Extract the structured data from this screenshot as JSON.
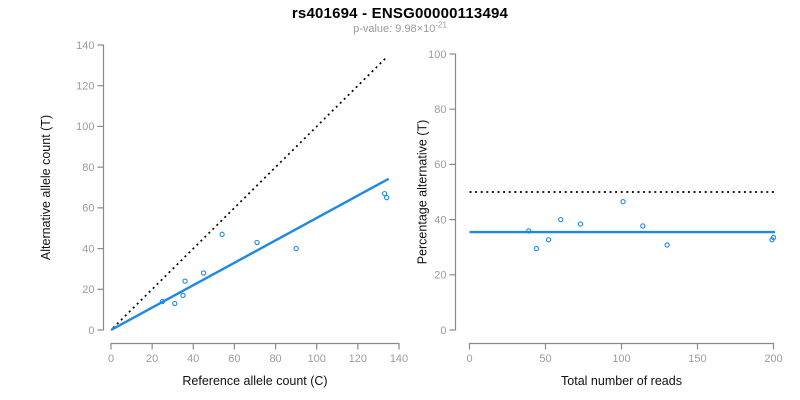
{
  "header": {
    "title": "rs401694 - ENSG00000113494",
    "subtitle_prefix": "p-value: 9.98×10",
    "subtitle_exponent": "-21"
  },
  "colors": {
    "accent_blue": "#1E88E5",
    "axis_gray": "#8a8a8a",
    "tick_label_gray": "#9c9c9c",
    "dotted_black": "#000000",
    "subtitle_gray": "#9a9a9a"
  },
  "chart_data": [
    {
      "type": "scatter",
      "name": "allele-counts-scatter",
      "xlabel": "Reference allele count (C)",
      "ylabel": "Alternative allele count (T)",
      "xlim": [
        0,
        140
      ],
      "ylim": [
        0,
        140
      ],
      "xticks": [
        0,
        20,
        40,
        60,
        80,
        100,
        120,
        140
      ],
      "yticks": [
        0,
        20,
        40,
        60,
        80,
        100,
        120,
        140
      ],
      "grid": false,
      "marker": "open-circle",
      "points": [
        [
          25,
          14
        ],
        [
          31,
          13
        ],
        [
          35,
          17
        ],
        [
          36,
          24
        ],
        [
          45,
          28
        ],
        [
          54,
          47
        ],
        [
          71,
          43
        ],
        [
          90,
          40
        ],
        [
          133,
          67
        ],
        [
          134,
          65
        ]
      ],
      "lines": [
        {
          "name": "identity-line",
          "style": "dotted",
          "color": "#000000",
          "from": [
            1,
            1
          ],
          "to": [
            134.5,
            134.5
          ]
        },
        {
          "name": "regression-line",
          "style": "solid",
          "color": "#1E88E5",
          "from": [
            0,
            0
          ],
          "to": [
            135,
            74.3
          ]
        }
      ]
    },
    {
      "type": "scatter",
      "name": "percentage-vs-reads-scatter",
      "xlabel": "Total number of reads",
      "ylabel": "Percentage alternative (T)",
      "xlim": [
        0,
        200
      ],
      "ylim": [
        0,
        100
      ],
      "xticks": [
        0,
        50,
        100,
        150,
        200
      ],
      "yticks": [
        0,
        20,
        40,
        60,
        80,
        100
      ],
      "grid": false,
      "marker": "open-circle",
      "points": [
        [
          39,
          35.9
        ],
        [
          44,
          29.5
        ],
        [
          52,
          32.7
        ],
        [
          60,
          40.0
        ],
        [
          73,
          38.4
        ],
        [
          101,
          46.5
        ],
        [
          114,
          37.7
        ],
        [
          130,
          30.8
        ],
        [
          199,
          32.7
        ],
        [
          200,
          33.5
        ]
      ],
      "lines": [
        {
          "name": "fifty-percent-line",
          "style": "dotted",
          "color": "#000000",
          "from": [
            0,
            50
          ],
          "to": [
            201,
            50
          ]
        },
        {
          "name": "mean-percentage-line",
          "style": "solid",
          "color": "#1E88E5",
          "from": [
            0,
            35.5
          ],
          "to": [
            201,
            35.5
          ]
        }
      ]
    }
  ]
}
